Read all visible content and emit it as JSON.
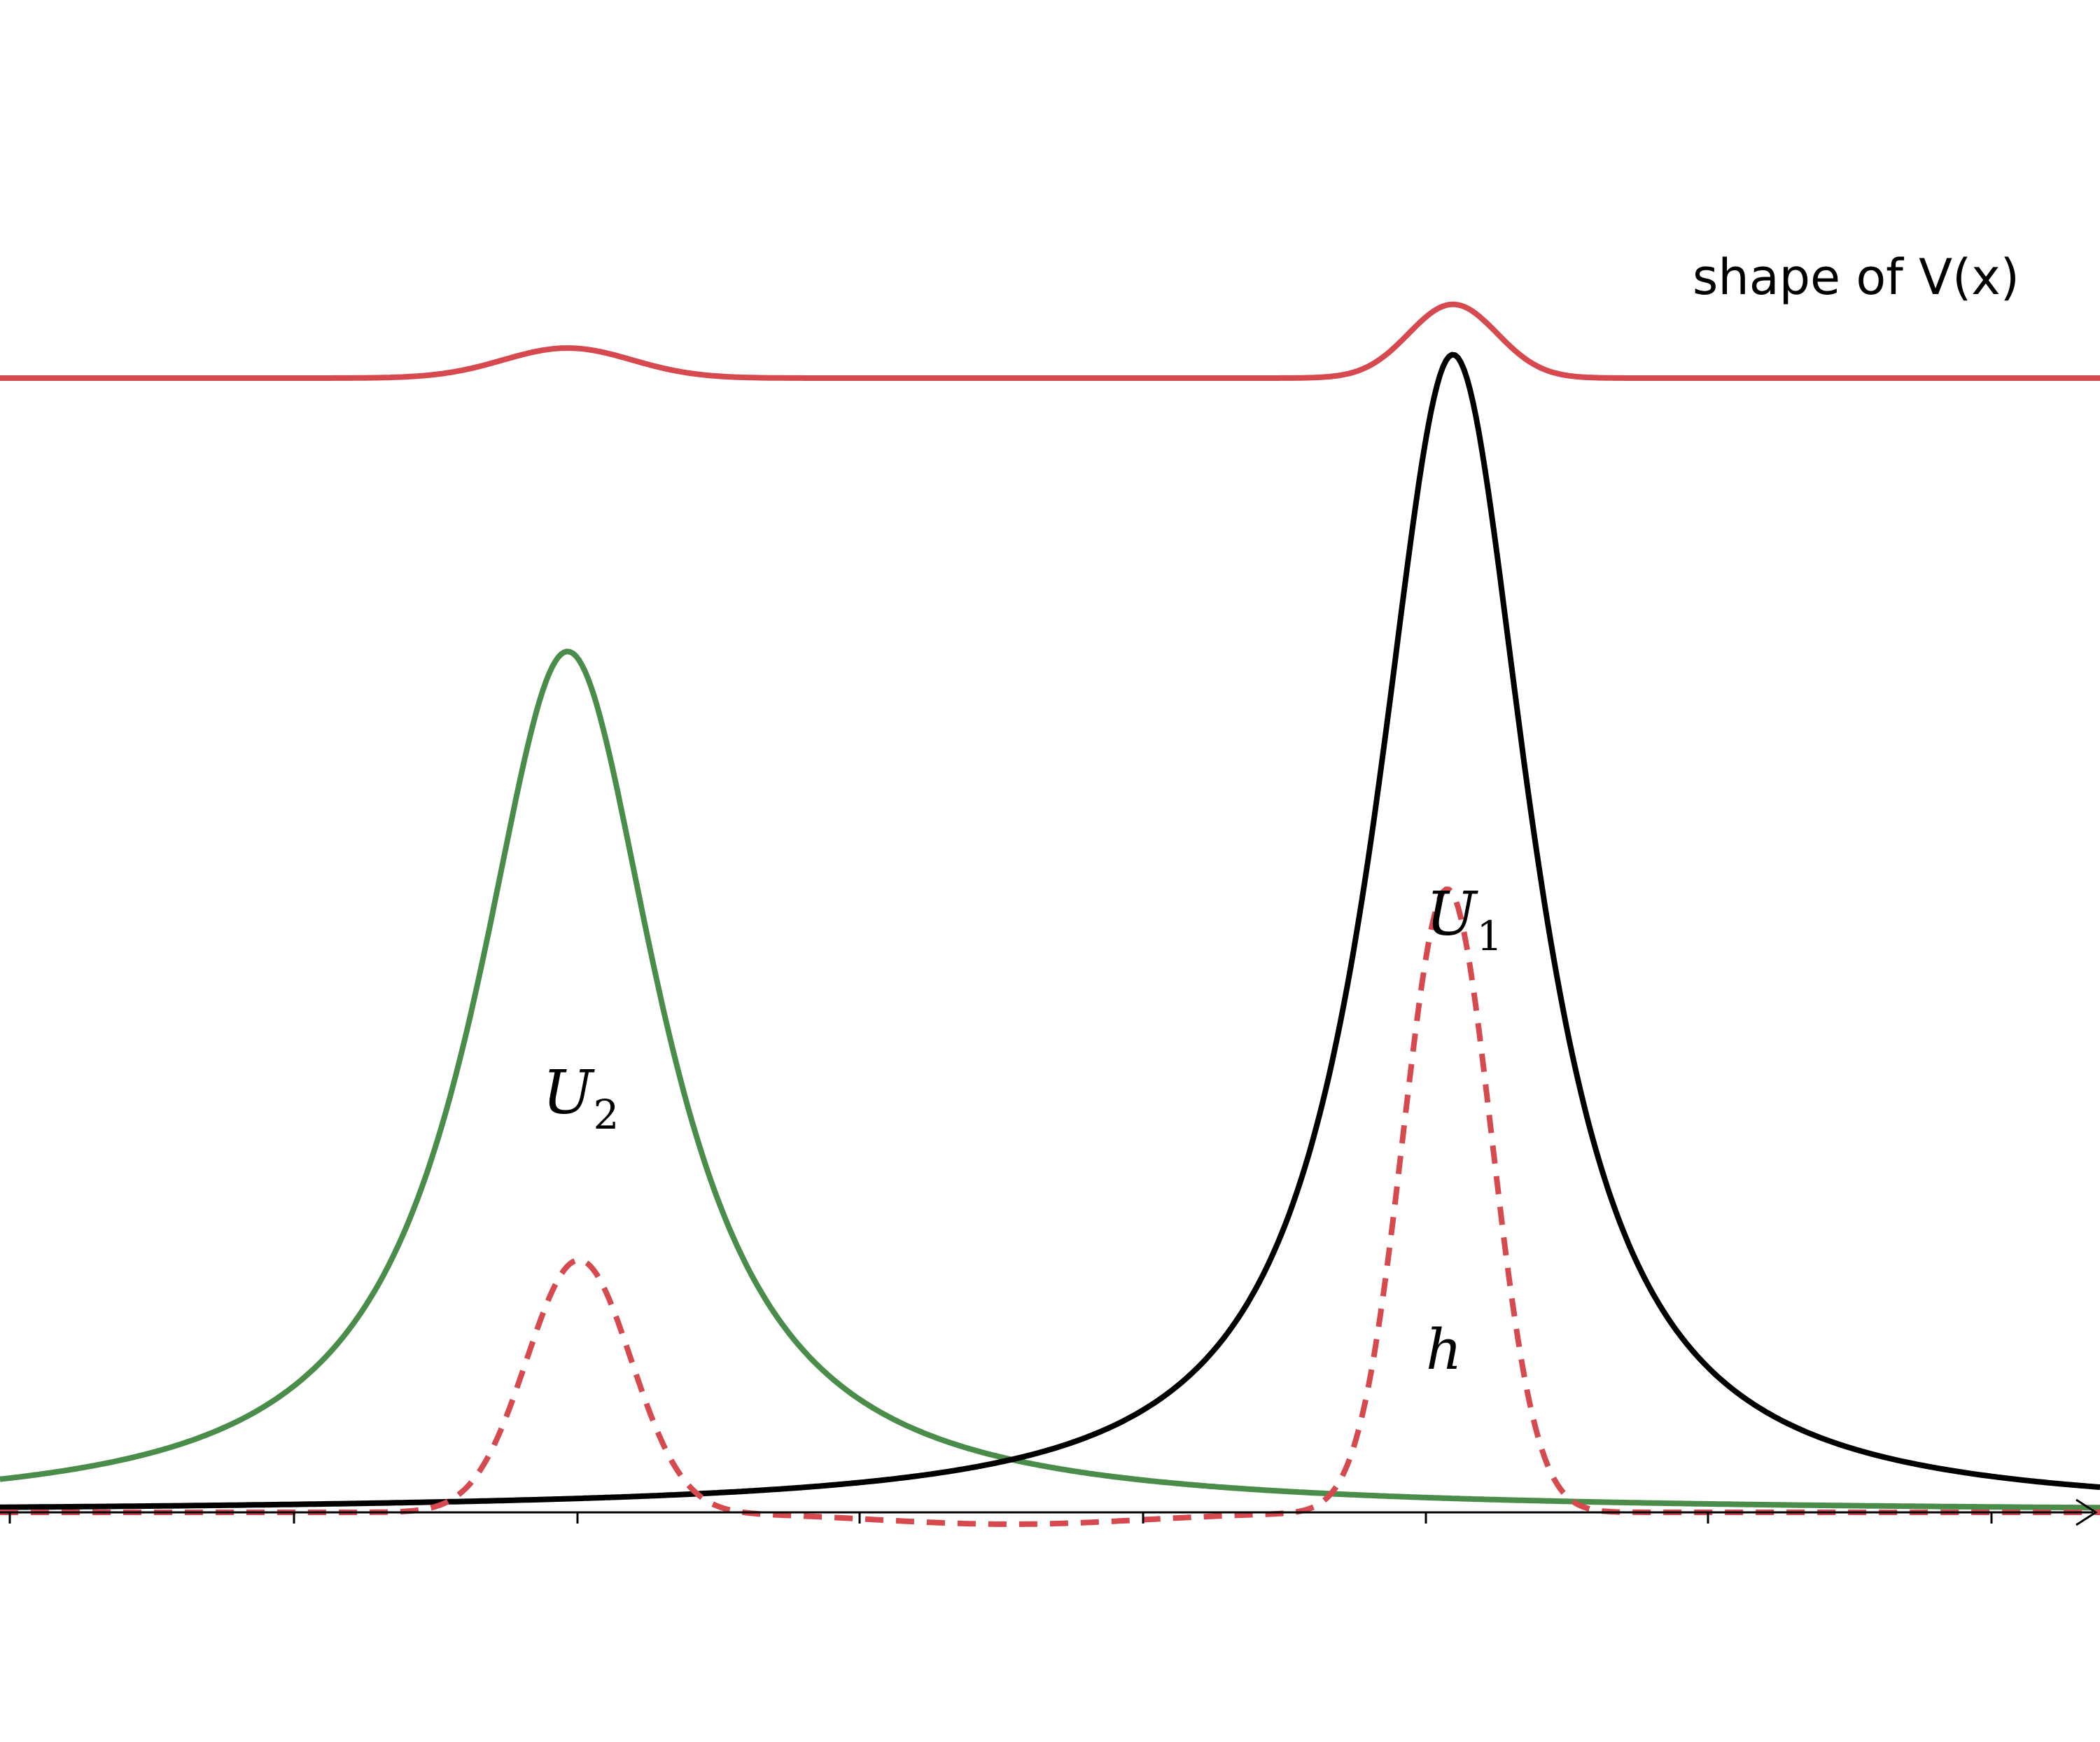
{
  "chart_data": {
    "type": "line",
    "xlim": [
      -6,
      12.5
    ],
    "ylim": [
      -0.04,
      1.05
    ],
    "x_ticks": [
      -6,
      -3.5,
      -1,
      1.5,
      4,
      6.5,
      9,
      11.5
    ],
    "grid": false,
    "legend": "none",
    "annotations": {
      "potential_label": "shape of V(x)",
      "u1_label": "U",
      "u1_sub": "1",
      "u2_label": "U",
      "u2_sub": "2",
      "h_label": "h"
    },
    "series": [
      {
        "key": "U2",
        "color": "#4a8c4a",
        "style": "solid",
        "center": -1.0,
        "width": 1.0,
        "peak": 0.58
      },
      {
        "key": "U1",
        "color": "#000000",
        "style": "solid",
        "center": 6.8,
        "width": 0.85,
        "peak": 0.78
      },
      {
        "key": "h",
        "color": "#d64a4f",
        "style": "dashed",
        "components": [
          {
            "center": -0.9,
            "width": 0.65,
            "amplitude": 0.17
          },
          {
            "center": 6.75,
            "width": 0.55,
            "amplitude": 0.42
          },
          {
            "center": 2.9,
            "width": 1.7,
            "amplitude": -0.008
          }
        ]
      },
      {
        "key": "V",
        "color": "#d64a4f",
        "style": "solid",
        "baseline": 1.0,
        "components": [
          {
            "center": -1.0,
            "width": 0.8,
            "amplitude": 0.055
          },
          {
            "center": 6.8,
            "width": 0.55,
            "amplitude": 0.135
          }
        ]
      }
    ]
  }
}
